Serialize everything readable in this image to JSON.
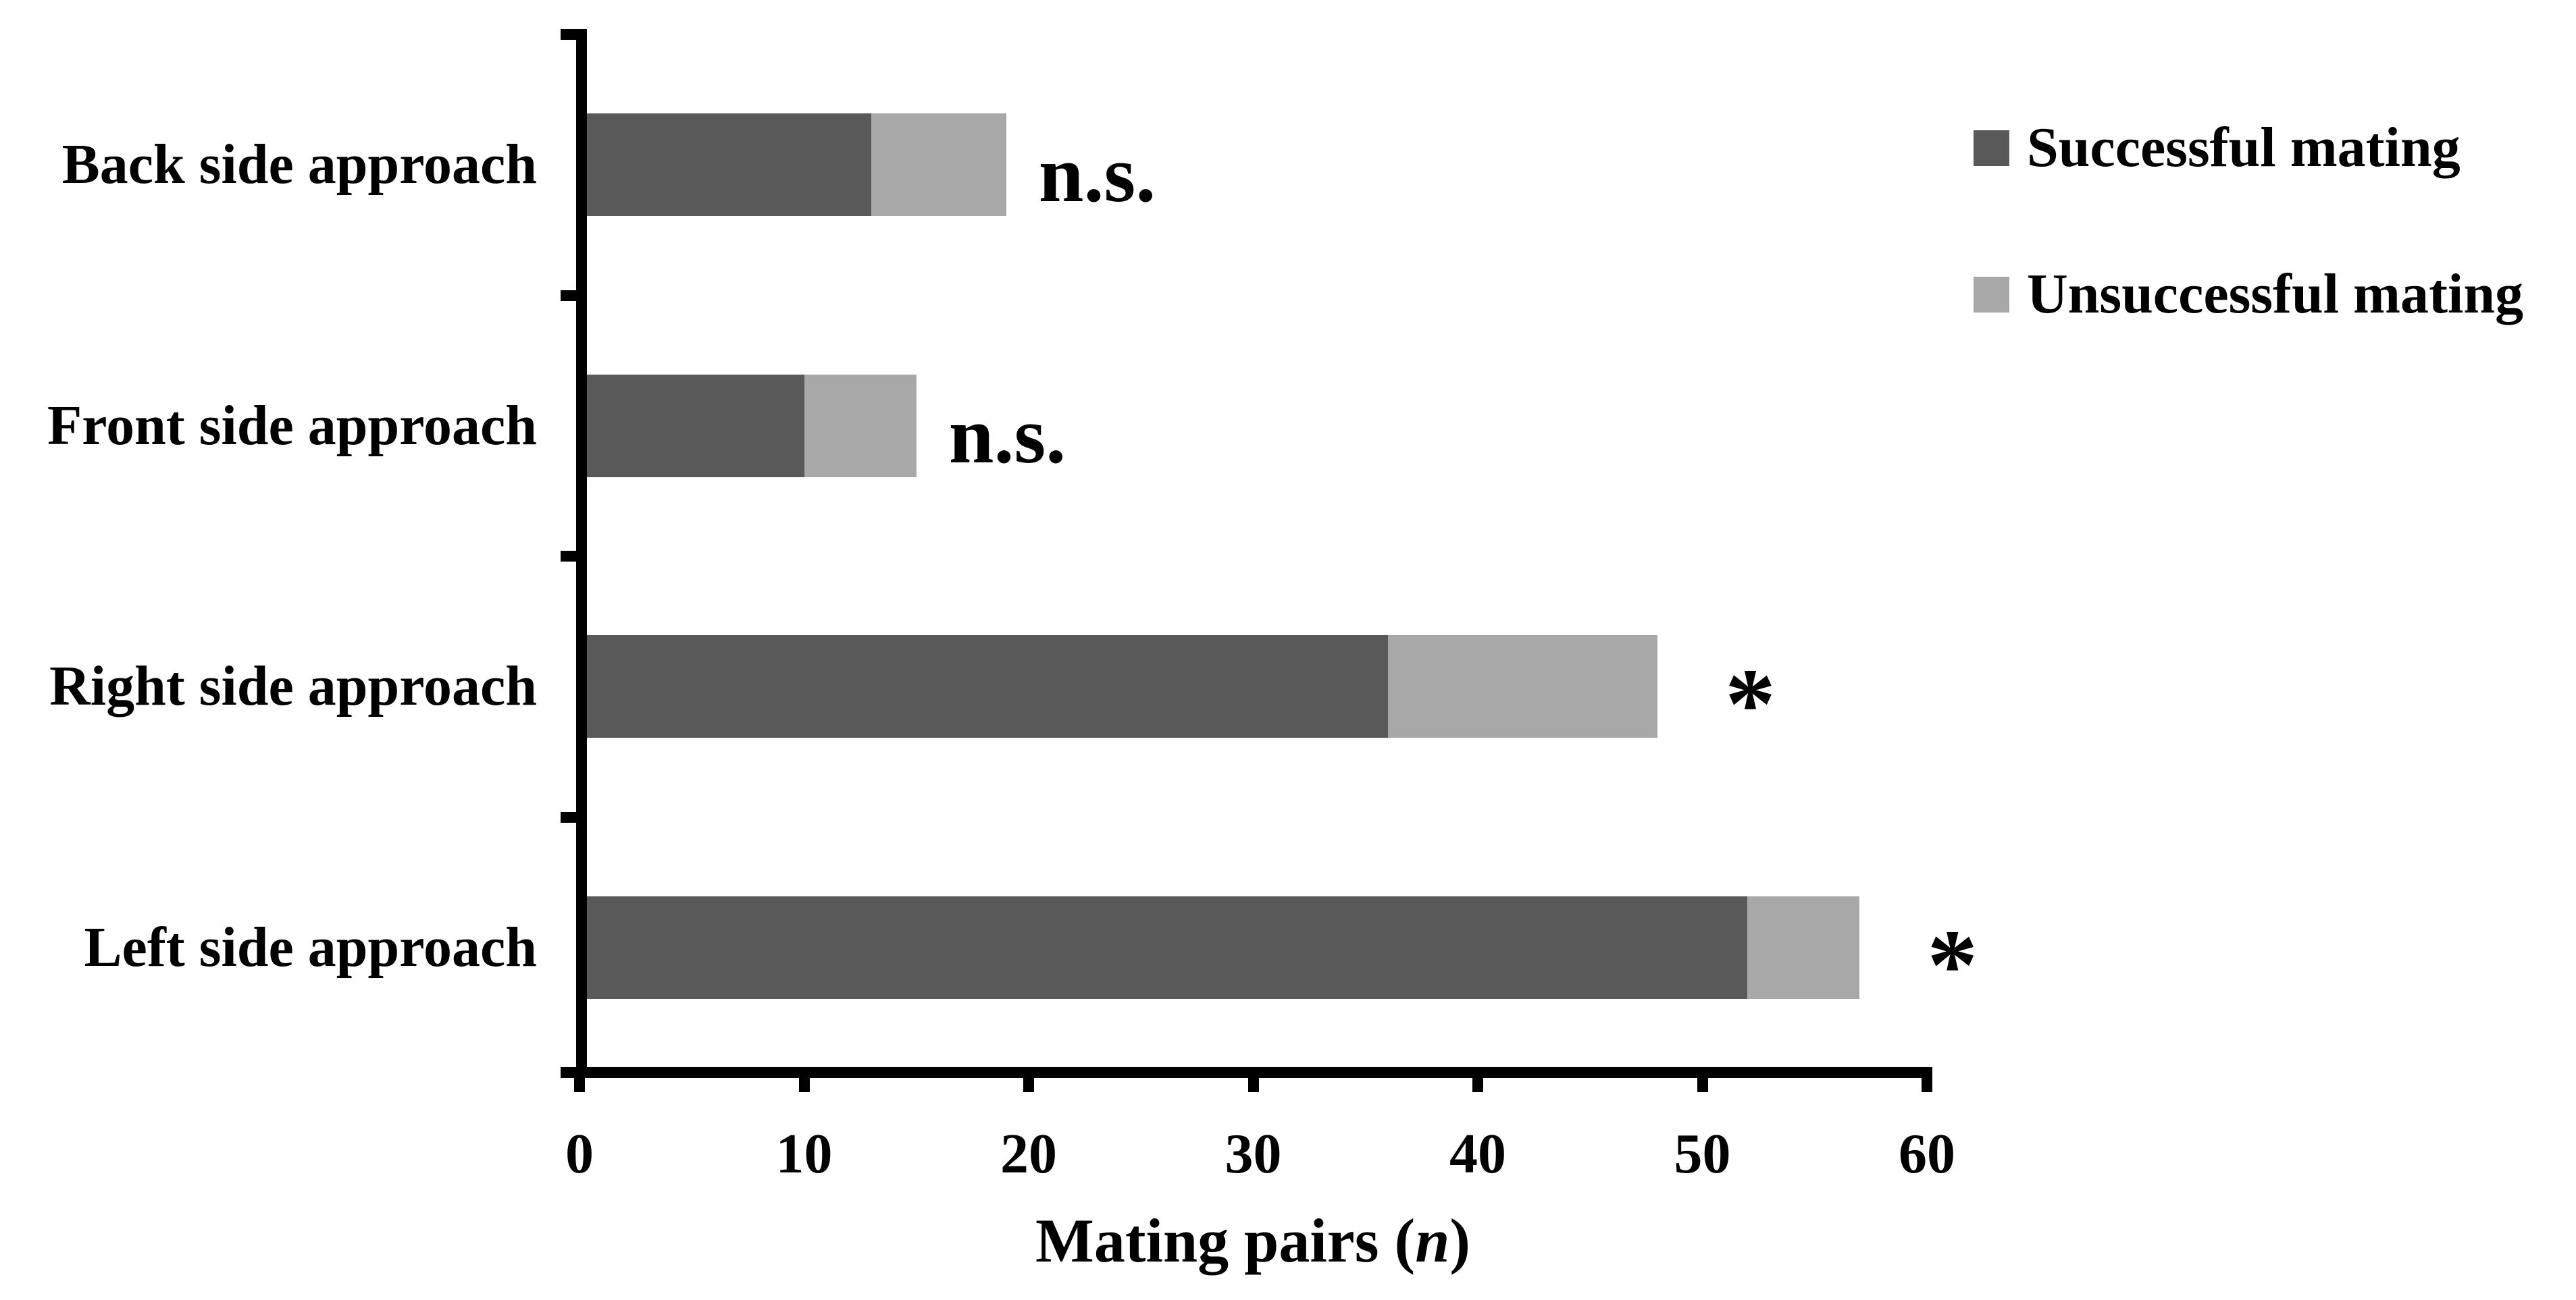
{
  "chart_data": {
    "type": "bar",
    "orientation": "horizontal",
    "stacked": true,
    "grid": false,
    "title": "",
    "xlabel": "Mating pairs (n)",
    "xlabel_prefix": "Mating pairs (",
    "xlabel_italic": "n",
    "xlabel_suffix": ")",
    "ylabel": "",
    "xlim": [
      0,
      60
    ],
    "xticks": [
      "0",
      "10",
      "20",
      "30",
      "40",
      "50",
      "60"
    ],
    "categories": [
      "Back side approach",
      "Front side approach",
      "Right side approach",
      "Left side approach"
    ],
    "series": [
      {
        "name": "Successful mating",
        "color": "#595959",
        "values": [
          13,
          10,
          36,
          52
        ]
      },
      {
        "name": "Unsuccessful mating",
        "color": "#a8a8a8",
        "values": [
          6,
          5,
          12,
          5
        ]
      }
    ],
    "totals": [
      19,
      15,
      48,
      57
    ],
    "annotations": [
      "n.s.",
      "n.s.",
      "*",
      "*"
    ],
    "legend_position": "top-right"
  },
  "legend": {
    "items": [
      {
        "label": "Successful mating",
        "color": "#595959"
      },
      {
        "label": "Unsuccessful mating",
        "color": "#a8a8a8"
      }
    ]
  },
  "colors": {
    "axis": "#000000",
    "text": "#000000",
    "background": "#ffffff"
  }
}
